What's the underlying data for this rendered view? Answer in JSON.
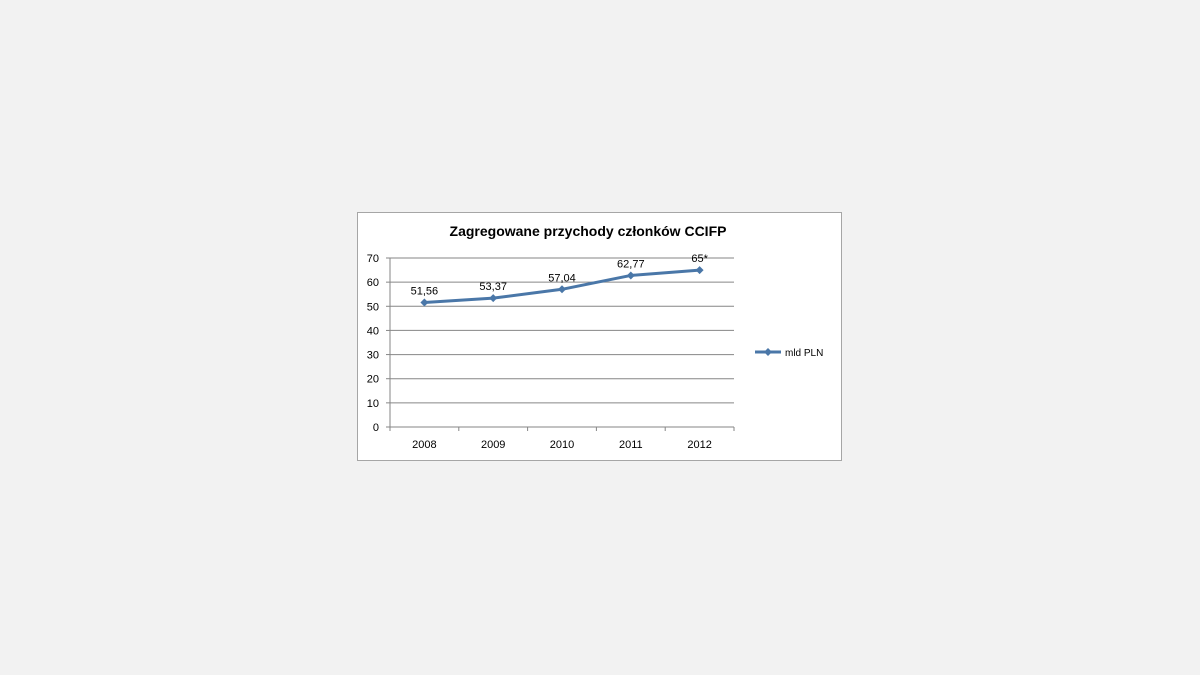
{
  "chart_data": {
    "type": "line",
    "title": "Zagregowane przychody członków CCIFP",
    "categories": [
      "2008",
      "2009",
      "2010",
      "2011",
      "2012"
    ],
    "series": [
      {
        "name": "mld PLN",
        "values": [
          51.56,
          53.37,
          57.04,
          62.77,
          65
        ],
        "labels": [
          "51,56",
          "53,37",
          "57,04",
          "62,77",
          "65*"
        ],
        "color": "#4a77a8"
      }
    ],
    "ylim": [
      0,
      70
    ],
    "yticks": [
      "0",
      "10",
      "20",
      "30",
      "40",
      "50",
      "60",
      "70"
    ],
    "grid": true,
    "legend": "right",
    "xlabel": "",
    "ylabel": ""
  }
}
